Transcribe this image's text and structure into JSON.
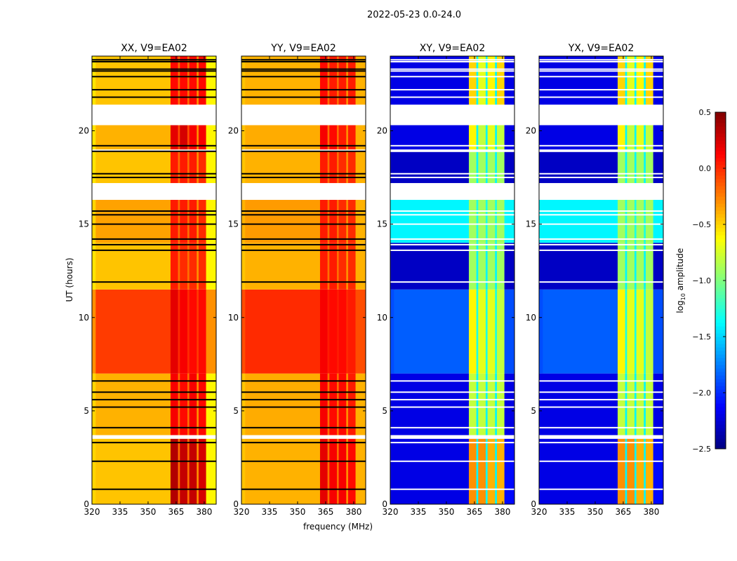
{
  "chart_data": {
    "type": "heatmap",
    "title": "2022-05-23 0.0-24.0",
    "xlabel": "frequency (MHz)",
    "ylabel": "UT (hours)",
    "xlim": [
      320,
      386.4
    ],
    "ylim": [
      0,
      24
    ],
    "xticks": [
      320,
      335,
      350,
      365,
      380
    ],
    "yticks": [
      0,
      5,
      10,
      15,
      20
    ],
    "colorbar": {
      "label": "log10 amplitude",
      "label_main": "log",
      "label_sub": "10",
      "label_rest": " amplitude",
      "range": [
        -2.5,
        0.5
      ],
      "ticks": [
        "0.5",
        "0.0",
        "−0.5",
        "−1.0",
        "−1.5",
        "−2.0",
        "−2.5"
      ],
      "tick_values": [
        0.5,
        0.0,
        -0.5,
        -1.0,
        -1.5,
        -2.0,
        -2.5
      ],
      "colormap": "jet"
    },
    "time_segments": [
      [
        0,
        3.5
      ],
      [
        3.7,
        7.0
      ],
      [
        7.0,
        11.5
      ],
      [
        11.5,
        14.0
      ],
      [
        14.0,
        16.3
      ],
      [
        17.2,
        18.9
      ],
      [
        19.0,
        20.3
      ],
      [
        21.4,
        24.0
      ]
    ],
    "freq_bins": [
      [
        320,
        322
      ],
      [
        322,
        362
      ],
      [
        362,
        366
      ],
      [
        366,
        367
      ],
      [
        367,
        371
      ],
      [
        371,
        372
      ],
      [
        372,
        376
      ],
      [
        376,
        377
      ],
      [
        377,
        381
      ],
      [
        381,
        386.4
      ]
    ],
    "flag_lines_hours": [
      0.8,
      2.3,
      3.3,
      4.1,
      5.2,
      5.6,
      6.0,
      6.6,
      11.9,
      13.6,
      13.9,
      14.2,
      15.0,
      15.5,
      15.7,
      17.5,
      17.7,
      18.9,
      19.2,
      21.8,
      22.2,
      22.9,
      23.2,
      23.3,
      23.7,
      23.8
    ],
    "panels": [
      {
        "title": "XX, V9=EA02",
        "flag_color": "#000000",
        "levels": [
          [
            -0.5,
            -0.45,
            0.35,
            -0.2,
            0.3,
            -0.2,
            0.3,
            -0.3,
            0.25,
            -0.6
          ],
          [
            -0.5,
            -0.4,
            0.15,
            -0.2,
            0.1,
            -0.2,
            0.15,
            -0.3,
            0.1,
            -0.6
          ],
          [
            -0.3,
            -0.05,
            0.2,
            0.0,
            0.15,
            0.0,
            0.1,
            -0.05,
            0.1,
            -0.3
          ],
          [
            -0.55,
            -0.45,
            0.05,
            -0.2,
            0.0,
            -0.2,
            0.0,
            -0.3,
            0.0,
            -0.6
          ],
          [
            -0.5,
            -0.35,
            0.05,
            -0.2,
            0.05,
            -0.2,
            0.05,
            -0.3,
            0.0,
            -0.6
          ],
          [
            -0.55,
            -0.45,
            0.05,
            -0.2,
            0.05,
            -0.2,
            0.05,
            -0.3,
            0.0,
            -0.6
          ],
          [
            -0.55,
            -0.4,
            0.2,
            -0.1,
            0.25,
            -0.1,
            0.15,
            -0.3,
            0.15,
            -0.6
          ],
          [
            -0.55,
            -0.45,
            0.1,
            -0.2,
            0.1,
            -0.2,
            0.1,
            -0.3,
            0.1,
            -0.6
          ]
        ]
      },
      {
        "title": "YY, V9=EA02",
        "flag_color": "#000000",
        "levels": [
          [
            -0.45,
            -0.4,
            0.2,
            -0.2,
            0.15,
            -0.2,
            0.15,
            -0.3,
            0.1,
            -0.4
          ],
          [
            -0.45,
            -0.38,
            0.15,
            -0.2,
            0.1,
            -0.2,
            0.1,
            -0.3,
            0.05,
            -0.4
          ],
          [
            -0.1,
            0.0,
            0.15,
            0.05,
            0.1,
            0.05,
            0.1,
            0.0,
            0.05,
            -0.1
          ],
          [
            -0.45,
            -0.4,
            0.05,
            -0.2,
            0.05,
            -0.2,
            0.0,
            -0.3,
            0.0,
            -0.4
          ],
          [
            -0.4,
            -0.33,
            0.05,
            -0.2,
            0.05,
            -0.2,
            0.0,
            -0.3,
            0.0,
            -0.4
          ],
          [
            -0.45,
            -0.4,
            0.05,
            -0.2,
            0.05,
            -0.2,
            0.0,
            -0.3,
            0.0,
            -0.4
          ],
          [
            -0.45,
            -0.38,
            0.15,
            -0.2,
            0.1,
            -0.2,
            0.05,
            -0.3,
            0.05,
            -0.4
          ],
          [
            -0.45,
            -0.4,
            0.1,
            -0.2,
            0.05,
            -0.2,
            0.05,
            -0.3,
            0.05,
            -0.4
          ]
        ]
      },
      {
        "title": "XY, V9=EA02",
        "flag_color": "#ffffff",
        "levels": [
          [
            -2.2,
            -2.2,
            -0.3,
            -1.4,
            -0.3,
            -1.4,
            -0.4,
            -1.4,
            -0.4,
            -2.1
          ],
          [
            -2.2,
            -2.2,
            -0.8,
            -1.4,
            -0.8,
            -1.4,
            -0.8,
            -1.4,
            -0.8,
            -2.2
          ],
          [
            -1.9,
            -1.85,
            -0.6,
            -1.3,
            -0.7,
            -1.3,
            -0.7,
            -1.3,
            -0.8,
            -1.9
          ],
          [
            -2.3,
            -2.3,
            -0.9,
            -1.4,
            -0.9,
            -1.4,
            -0.9,
            -1.4,
            -0.9,
            -2.3
          ],
          [
            -1.4,
            -1.4,
            -0.9,
            -1.3,
            -0.9,
            -1.3,
            -0.9,
            -1.3,
            -0.9,
            -1.4
          ],
          [
            -2.3,
            -2.3,
            -0.9,
            -1.4,
            -0.9,
            -1.4,
            -0.9,
            -1.4,
            -0.9,
            -2.3
          ],
          [
            -2.2,
            -2.2,
            -0.6,
            -1.4,
            -0.8,
            -1.4,
            -0.7,
            -1.4,
            -0.8,
            -2.2
          ],
          [
            -2.2,
            -2.2,
            -0.5,
            -1.4,
            -0.7,
            -1.4,
            -0.6,
            -1.4,
            -0.5,
            -2.2
          ]
        ]
      },
      {
        "title": "YX, V9=EA02",
        "flag_color": "#ffffff",
        "levels": [
          [
            -2.2,
            -2.2,
            -0.3,
            -1.4,
            -0.3,
            -1.4,
            -0.4,
            -1.4,
            -0.4,
            -2.1
          ],
          [
            -2.2,
            -2.2,
            -0.8,
            -1.4,
            -0.8,
            -1.4,
            -0.8,
            -1.4,
            -0.8,
            -2.2
          ],
          [
            -1.9,
            -1.85,
            -0.6,
            -1.3,
            -0.7,
            -1.3,
            -0.7,
            -1.3,
            -0.8,
            -1.9
          ],
          [
            -2.3,
            -2.3,
            -0.9,
            -1.4,
            -0.9,
            -1.4,
            -0.9,
            -1.4,
            -0.9,
            -2.3
          ],
          [
            -1.4,
            -1.4,
            -0.9,
            -1.3,
            -0.9,
            -1.3,
            -0.9,
            -1.3,
            -0.9,
            -1.4
          ],
          [
            -2.3,
            -2.3,
            -0.9,
            -1.4,
            -0.9,
            -1.4,
            -0.9,
            -1.4,
            -0.9,
            -2.3
          ],
          [
            -2.2,
            -2.2,
            -0.6,
            -1.4,
            -0.8,
            -1.4,
            -0.7,
            -1.4,
            -0.8,
            -2.2
          ],
          [
            -2.2,
            -2.2,
            -0.5,
            -1.4,
            -0.7,
            -1.4,
            -0.6,
            -1.4,
            -0.5,
            -2.2
          ]
        ]
      }
    ]
  }
}
